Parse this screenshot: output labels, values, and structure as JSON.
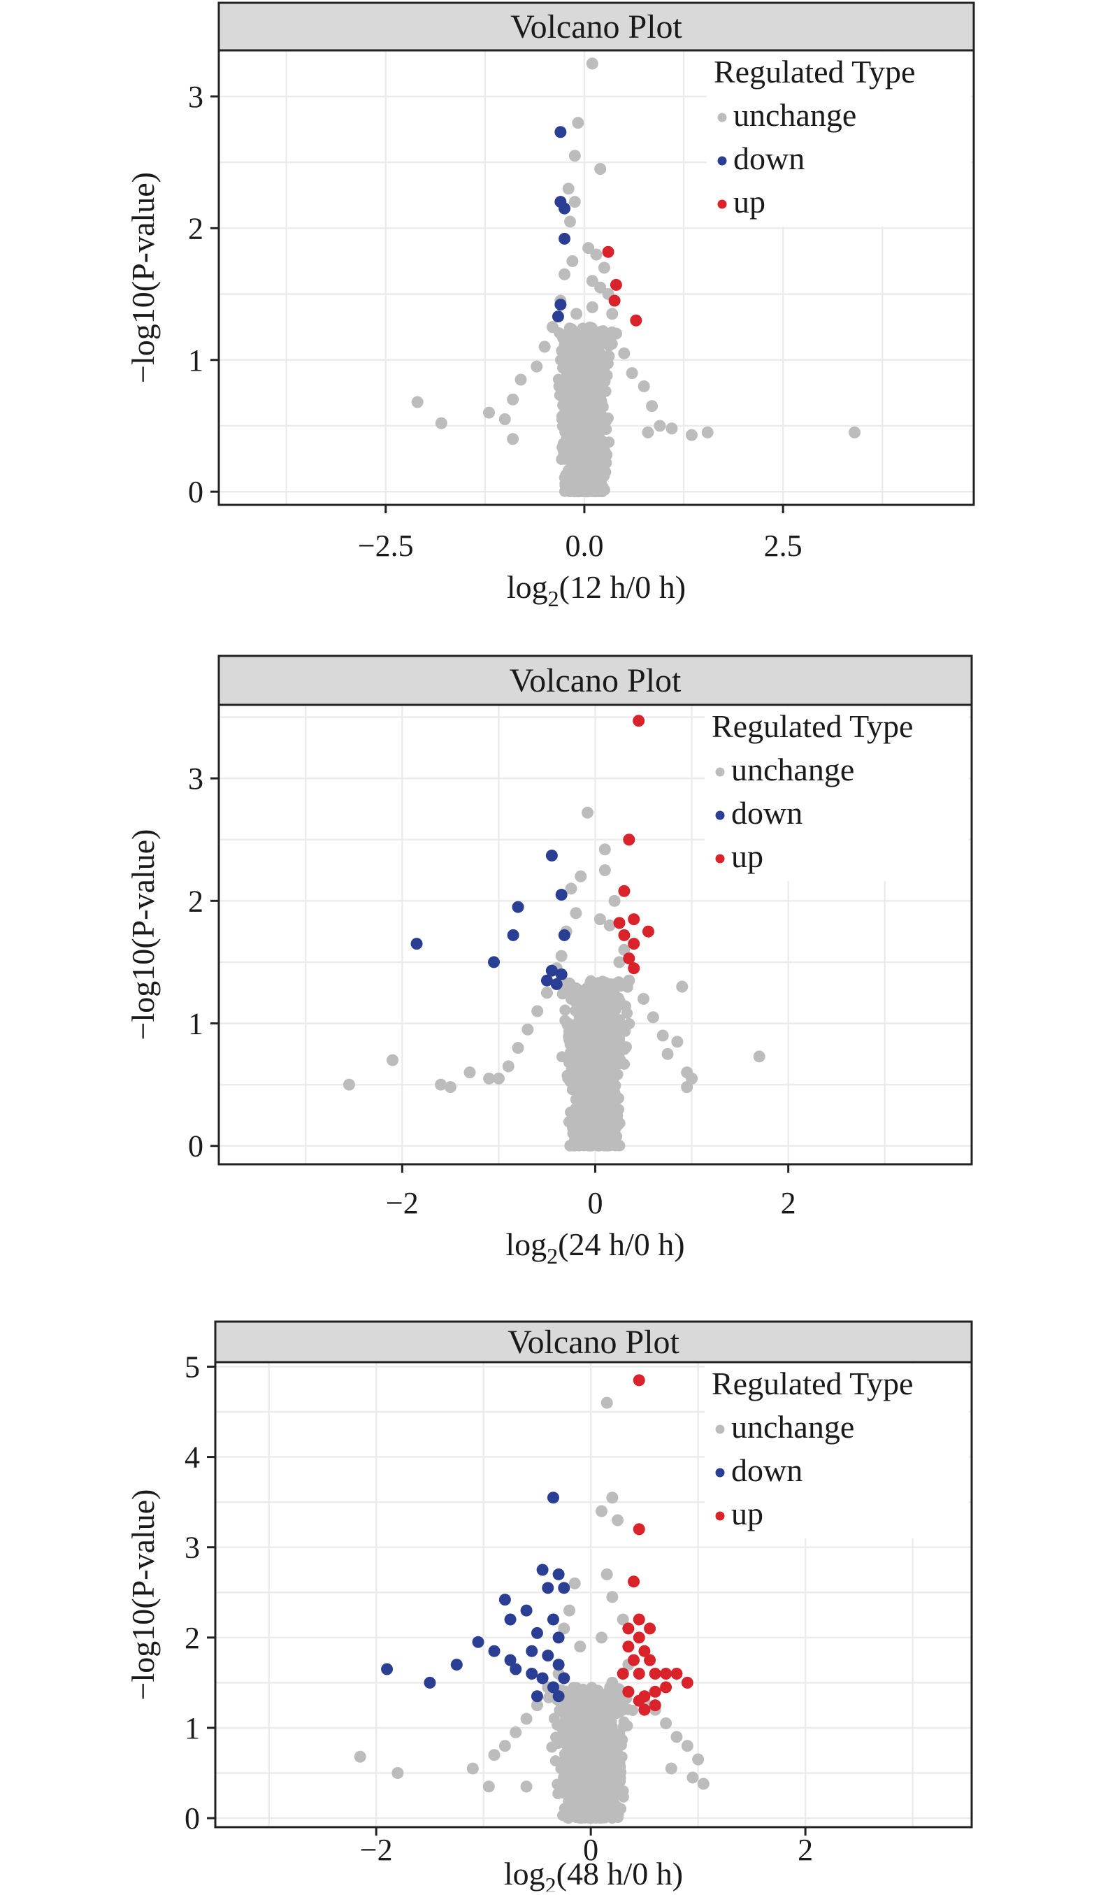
{
  "colors": {
    "unchange": "#bcbcbc",
    "down": "#2a3f93",
    "up": "#d9222a",
    "strip_fill": "#d9d9d9",
    "grid": "#ebebeb",
    "axis": "#222222"
  },
  "chart_data": [
    {
      "type": "scatter",
      "title": "Volcano Plot",
      "xlabel": "log2(12 h/0 h)",
      "xlabel_main": "log",
      "xlabel_sub": "2",
      "xlabel_rest": "(12 h/0 h)",
      "ylabel": "−log10(P-value)",
      "xlim": [
        -4.6,
        4.9
      ],
      "ylim": [
        -0.1,
        3.35
      ],
      "xticks": [
        -2.5,
        0.0,
        2.5
      ],
      "xtick_labels": [
        "−2.5",
        "0.0",
        "2.5"
      ],
      "yticks": [
        0,
        1,
        2,
        3
      ],
      "ytick_labels": [
        "0",
        "1",
        "2",
        "3"
      ],
      "legend": {
        "title": "Regulated Type",
        "position": "top-right",
        "items": [
          "unchange",
          "down",
          "up"
        ]
      },
      "series": [
        {
          "name": "unchange",
          "points": [
            [
              0.1,
              3.25
            ],
            [
              -0.08,
              2.8
            ],
            [
              0.2,
              2.45
            ],
            [
              -0.12,
              2.55
            ],
            [
              -0.2,
              2.3
            ],
            [
              -0.12,
              2.2
            ],
            [
              -0.18,
              2.05
            ],
            [
              0.05,
              1.85
            ],
            [
              0.15,
              1.8
            ],
            [
              -0.15,
              1.75
            ],
            [
              0.25,
              1.7
            ],
            [
              -0.25,
              1.65
            ],
            [
              0.1,
              1.6
            ],
            [
              0.2,
              1.55
            ],
            [
              0.3,
              1.5
            ],
            [
              -0.3,
              1.45
            ],
            [
              0.1,
              1.4
            ],
            [
              -0.1,
              1.35
            ],
            [
              0.35,
              1.35
            ],
            [
              -0.4,
              1.25
            ],
            [
              0.4,
              1.2
            ],
            [
              -0.5,
              1.1
            ],
            [
              0.5,
              1.05
            ],
            [
              -0.6,
              0.95
            ],
            [
              0.6,
              0.9
            ],
            [
              -0.8,
              0.85
            ],
            [
              0.75,
              0.8
            ],
            [
              -0.9,
              0.7
            ],
            [
              0.85,
              0.65
            ],
            [
              -2.1,
              0.68
            ],
            [
              -1.8,
              0.52
            ],
            [
              -1.2,
              0.6
            ],
            [
              -1.0,
              0.55
            ],
            [
              0.95,
              0.5
            ],
            [
              1.1,
              0.48
            ],
            [
              1.35,
              0.43
            ],
            [
              1.55,
              0.45
            ],
            [
              3.4,
              0.45
            ],
            [
              0.8,
              0.45
            ],
            [
              -0.9,
              0.4
            ]
          ]
        },
        {
          "name": "down",
          "points": [
            [
              -0.3,
              2.73
            ],
            [
              -0.3,
              2.2
            ],
            [
              -0.25,
              2.15
            ],
            [
              -0.25,
              1.92
            ],
            [
              -0.3,
              1.42
            ],
            [
              -0.33,
              1.33
            ]
          ]
        },
        {
          "name": "up",
          "points": [
            [
              0.3,
              1.82
            ],
            [
              0.4,
              1.57
            ],
            [
              0.38,
              1.45
            ],
            [
              0.65,
              1.3
            ]
          ]
        }
      ]
    },
    {
      "type": "scatter",
      "title": "Volcano Plot",
      "xlabel": "log2(24 h/0 h)",
      "xlabel_main": "log",
      "xlabel_sub": "2",
      "xlabel_rest": "(24 h/0 h)",
      "ylabel": "−log10(P-value)",
      "xlim": [
        -3.9,
        3.9
      ],
      "ylim": [
        -0.15,
        3.6
      ],
      "xticks": [
        -2,
        0,
        2
      ],
      "xtick_labels": [
        "−2",
        "0",
        "2"
      ],
      "yticks": [
        0,
        1,
        2,
        3
      ],
      "ytick_labels": [
        "0",
        "1",
        "2",
        "3"
      ],
      "legend": {
        "title": "Regulated Type",
        "position": "top-right",
        "items": [
          "unchange",
          "down",
          "up"
        ]
      },
      "series": [
        {
          "name": "unchange",
          "points": [
            [
              -0.08,
              2.72
            ],
            [
              0.1,
              2.42
            ],
            [
              0.1,
              2.25
            ],
            [
              -0.15,
              2.2
            ],
            [
              -0.25,
              2.1
            ],
            [
              0.2,
              2.0
            ],
            [
              -0.2,
              1.9
            ],
            [
              0.05,
              1.85
            ],
            [
              0.15,
              1.8
            ],
            [
              -0.3,
              1.75
            ],
            [
              0.3,
              1.6
            ],
            [
              -0.35,
              1.55
            ],
            [
              0.25,
              1.5
            ],
            [
              -0.4,
              1.45
            ],
            [
              0.35,
              1.35
            ],
            [
              -0.5,
              1.25
            ],
            [
              0.5,
              1.2
            ],
            [
              -0.6,
              1.1
            ],
            [
              0.6,
              1.05
            ],
            [
              -0.7,
              0.95
            ],
            [
              0.7,
              0.9
            ],
            [
              -0.8,
              0.8
            ],
            [
              0.75,
              0.75
            ],
            [
              0.85,
              0.85
            ],
            [
              -0.9,
              0.65
            ],
            [
              0.95,
              0.6
            ],
            [
              1.0,
              0.55
            ],
            [
              -1.0,
              0.55
            ],
            [
              0.9,
              1.3
            ],
            [
              -2.1,
              0.7
            ],
            [
              -2.55,
              0.5
            ],
            [
              -1.6,
              0.5
            ],
            [
              -1.5,
              0.48
            ],
            [
              -1.3,
              0.6
            ],
            [
              -1.1,
              0.55
            ],
            [
              0.95,
              0.48
            ],
            [
              1.7,
              0.73
            ]
          ]
        },
        {
          "name": "down",
          "points": [
            [
              -1.85,
              1.65
            ],
            [
              -1.05,
              1.5
            ],
            [
              -0.8,
              1.95
            ],
            [
              -0.85,
              1.72
            ],
            [
              -0.45,
              2.37
            ],
            [
              -0.35,
              2.05
            ],
            [
              -0.32,
              1.72
            ],
            [
              -0.45,
              1.43
            ],
            [
              -0.5,
              1.35
            ],
            [
              -0.35,
              1.4
            ],
            [
              -0.4,
              1.32
            ]
          ]
        },
        {
          "name": "up",
          "points": [
            [
              0.45,
              3.47
            ],
            [
              0.35,
              2.5
            ],
            [
              0.3,
              2.08
            ],
            [
              0.25,
              1.82
            ],
            [
              0.4,
              1.85
            ],
            [
              0.55,
              1.75
            ],
            [
              0.3,
              1.72
            ],
            [
              0.4,
              1.65
            ],
            [
              0.35,
              1.53
            ],
            [
              0.4,
              1.45
            ]
          ]
        }
      ]
    },
    {
      "type": "scatter",
      "title": "Volcano Plot",
      "xlabel": "log2(48 h/0 h)",
      "xlabel_main": "log",
      "xlabel_sub": "2",
      "xlabel_rest": "(48 h/0 h)",
      "ylabel": "−log10(P-value)",
      "xlim": [
        -3.5,
        3.55
      ],
      "ylim": [
        -0.1,
        5.05
      ],
      "xticks": [
        -2,
        0,
        2
      ],
      "xtick_labels": [
        "−2",
        "0",
        "2"
      ],
      "yticks": [
        0,
        1,
        2,
        3,
        4,
        5
      ],
      "ytick_labels": [
        "0",
        "1",
        "2",
        "3",
        "4",
        "5"
      ],
      "legend": {
        "title": "Regulated Type",
        "position": "top-right",
        "items": [
          "unchange",
          "down",
          "up"
        ]
      },
      "series": [
        {
          "name": "unchange",
          "points": [
            [
              0.15,
              4.6
            ],
            [
              0.2,
              3.55
            ],
            [
              0.1,
              3.4
            ],
            [
              0.25,
              3.3
            ],
            [
              0.15,
              2.7
            ],
            [
              -0.15,
              2.6
            ],
            [
              0.2,
              2.45
            ],
            [
              -0.2,
              2.3
            ],
            [
              0.3,
              2.2
            ],
            [
              -0.25,
              2.1
            ],
            [
              0.1,
              2.0
            ],
            [
              -0.1,
              1.9
            ],
            [
              0.35,
              1.7
            ],
            [
              -0.3,
              1.6
            ],
            [
              0.2,
              1.5
            ],
            [
              -0.4,
              1.45
            ],
            [
              0.5,
              1.3
            ],
            [
              -0.5,
              1.25
            ],
            [
              0.6,
              1.2
            ],
            [
              -0.6,
              1.1
            ],
            [
              0.7,
              1.05
            ],
            [
              -0.7,
              0.95
            ],
            [
              0.8,
              0.9
            ],
            [
              0.9,
              0.8
            ],
            [
              -0.8,
              0.8
            ],
            [
              1.0,
              0.65
            ],
            [
              -0.9,
              0.7
            ],
            [
              0.95,
              0.45
            ],
            [
              1.05,
              0.38
            ],
            [
              -2.15,
              0.68
            ],
            [
              -1.8,
              0.5
            ],
            [
              -1.1,
              0.55
            ],
            [
              -0.95,
              0.35
            ],
            [
              0.75,
              0.55
            ],
            [
              -0.6,
              0.35
            ]
          ]
        },
        {
          "name": "down",
          "points": [
            [
              -0.35,
              3.55
            ],
            [
              -1.9,
              1.65
            ],
            [
              -1.5,
              1.5
            ],
            [
              -1.25,
              1.7
            ],
            [
              -1.05,
              1.95
            ],
            [
              -0.8,
              2.42
            ],
            [
              -0.75,
              2.2
            ],
            [
              -0.9,
              1.85
            ],
            [
              -0.75,
              1.75
            ],
            [
              -0.7,
              1.65
            ],
            [
              -0.55,
              1.85
            ],
            [
              -0.5,
              2.05
            ],
            [
              -0.4,
              2.55
            ],
            [
              -0.25,
              2.55
            ],
            [
              -0.35,
              2.2
            ],
            [
              -0.3,
              2.0
            ],
            [
              -0.4,
              1.8
            ],
            [
              -0.3,
              1.7
            ],
            [
              -0.45,
              1.55
            ],
            [
              -0.35,
              1.45
            ],
            [
              -0.3,
              1.35
            ],
            [
              -0.5,
              1.35
            ],
            [
              -0.45,
              2.75
            ],
            [
              -0.3,
              2.7
            ],
            [
              -0.6,
              2.3
            ],
            [
              -0.25,
              1.55
            ],
            [
              -0.55,
              1.6
            ]
          ]
        },
        {
          "name": "up",
          "points": [
            [
              0.45,
              4.85
            ],
            [
              0.45,
              3.2
            ],
            [
              0.4,
              2.62
            ],
            [
              0.45,
              2.2
            ],
            [
              0.35,
              2.1
            ],
            [
              0.45,
              2.0
            ],
            [
              0.55,
              2.1
            ],
            [
              0.35,
              1.9
            ],
            [
              0.5,
              1.85
            ],
            [
              0.4,
              1.75
            ],
            [
              0.55,
              1.75
            ],
            [
              0.3,
              1.6
            ],
            [
              0.45,
              1.6
            ],
            [
              0.6,
              1.6
            ],
            [
              0.7,
              1.6
            ],
            [
              0.8,
              1.6
            ],
            [
              0.9,
              1.5
            ],
            [
              0.35,
              1.4
            ],
            [
              0.5,
              1.35
            ],
            [
              0.45,
              1.3
            ],
            [
              0.6,
              1.4
            ],
            [
              0.7,
              1.45
            ],
            [
              0.5,
              1.2
            ],
            [
              0.6,
              1.25
            ]
          ]
        }
      ]
    }
  ]
}
